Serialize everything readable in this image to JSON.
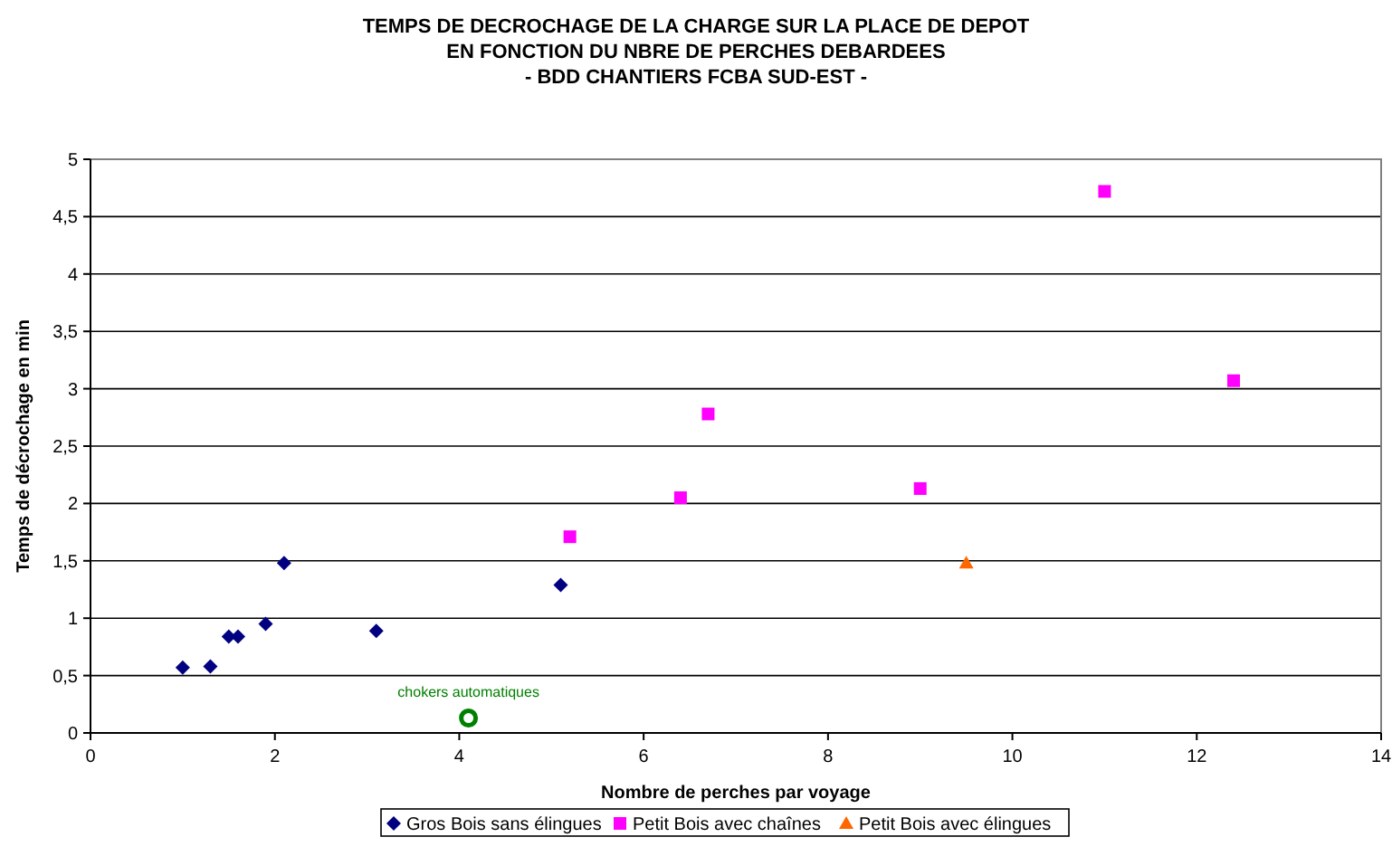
{
  "chart_data": {
    "type": "scatter",
    "title": "TEMPS DE DECROCHAGE DE LA CHARGE SUR LA PLACE DE DEPOT\nEN FONCTION DU NBRE DE PERCHES DEBARDEES\n- BDD CHANTIERS FCBA SUD-EST -",
    "xlabel": "Nombre de perches par voyage",
    "ylabel": "Temps de décrochage en min",
    "xlim": [
      0,
      14
    ],
    "xticks": [
      0,
      2,
      4,
      6,
      8,
      10,
      12,
      14
    ],
    "ylim": [
      0,
      5
    ],
    "yticks": [
      {
        "value": 0,
        "label": "0"
      },
      {
        "value": 0.5,
        "label": "0,5"
      },
      {
        "value": 1,
        "label": "1"
      },
      {
        "value": 1.5,
        "label": "1,5"
      },
      {
        "value": 2,
        "label": "2"
      },
      {
        "value": 2.5,
        "label": "2,5"
      },
      {
        "value": 3,
        "label": "3"
      },
      {
        "value": 3.5,
        "label": "3,5"
      },
      {
        "value": 4,
        "label": "4"
      },
      {
        "value": 4.5,
        "label": "4,5"
      },
      {
        "value": 5,
        "label": "5"
      }
    ],
    "grid": "y",
    "legend": "bottom",
    "series": [
      {
        "name": "Gros Bois sans élingues",
        "color": "#000080",
        "marker": "diamond",
        "x": [
          1.0,
          1.3,
          1.5,
          1.6,
          1.9,
          2.1,
          3.1,
          5.1
        ],
        "values": [
          0.57,
          0.58,
          0.84,
          0.84,
          0.95,
          1.48,
          0.89,
          1.29
        ]
      },
      {
        "name": "Petit Bois avec chaînes",
        "color": "#ff00ff",
        "marker": "square",
        "x": [
          5.2,
          6.4,
          6.7,
          9.0,
          11.0,
          12.4
        ],
        "values": [
          1.71,
          2.05,
          2.78,
          2.13,
          4.72,
          3.07
        ]
      },
      {
        "name": "Petit Bois avec élingues",
        "color": "#ff6600",
        "marker": "triangle",
        "x": [
          9.5
        ],
        "values": [
          1.48
        ]
      },
      {
        "color": "#008000",
        "marker": "circle",
        "x": [
          4.1
        ],
        "values": [
          0.13
        ]
      }
    ],
    "annotations": [
      {
        "text": "chokers automatiques",
        "x": 4.1,
        "y": 0.13
      }
    ]
  }
}
